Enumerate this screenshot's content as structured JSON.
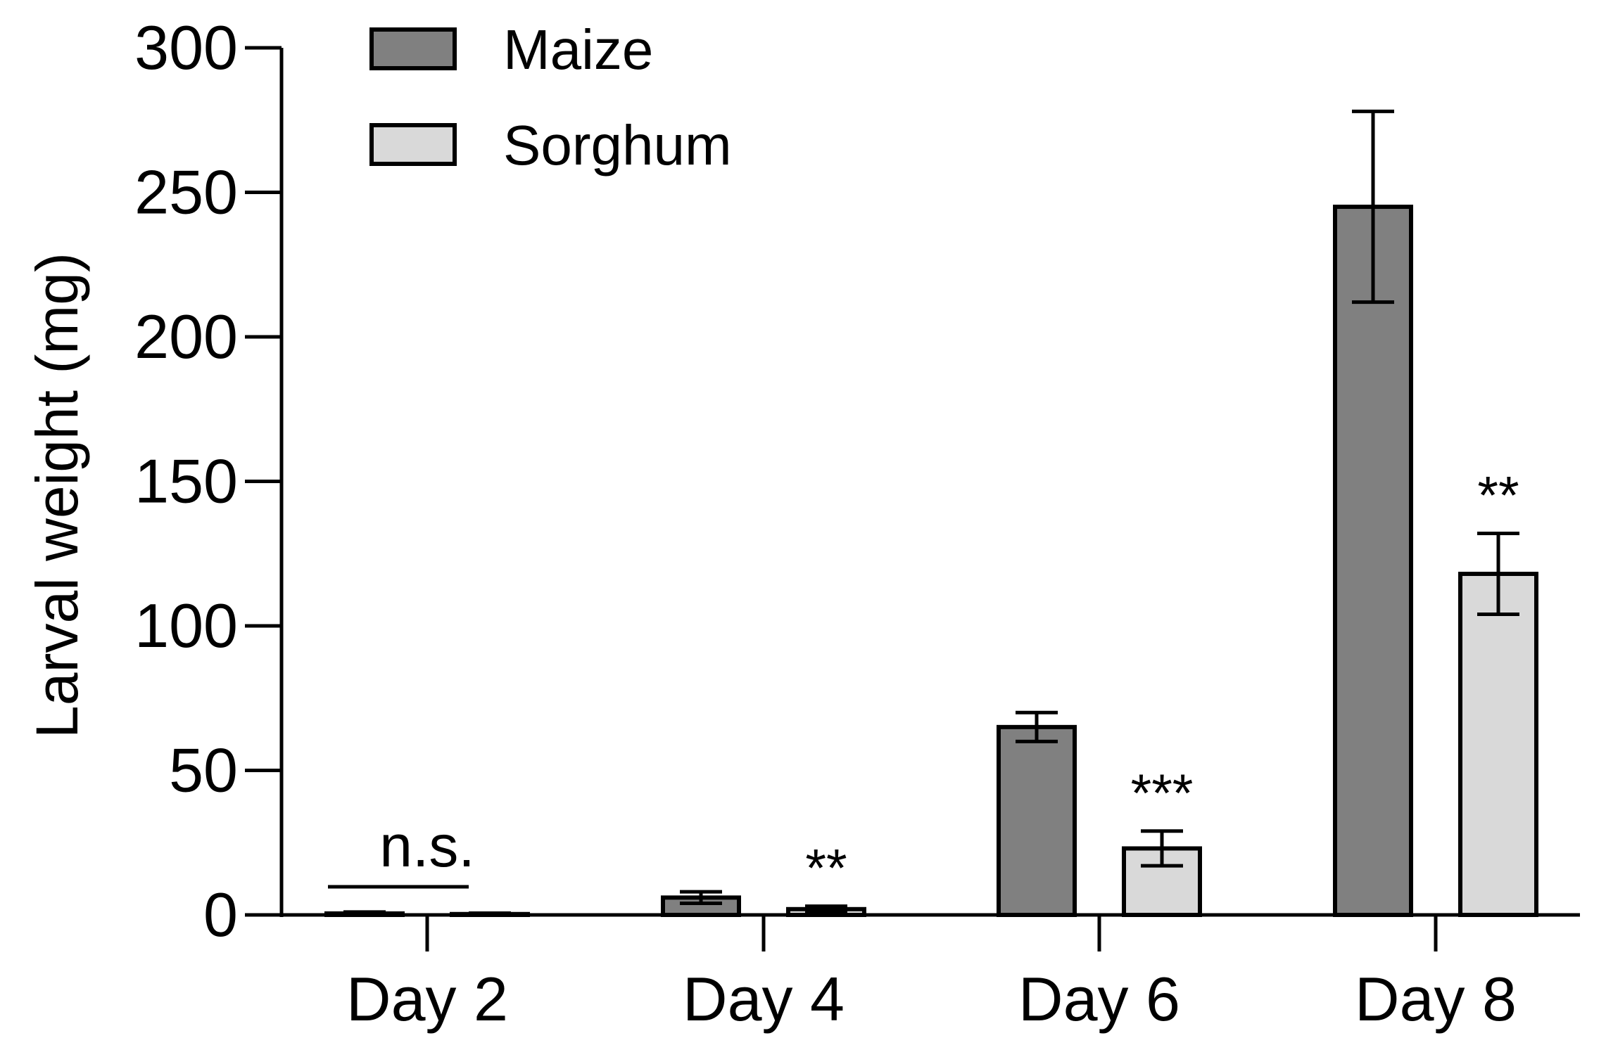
{
  "chart_data": {
    "type": "bar",
    "title": "",
    "xlabel": "",
    "ylabel": "Larval weight (mg)",
    "ylim": [
      0,
      300
    ],
    "yticks": [
      0,
      50,
      100,
      150,
      200,
      250,
      300
    ],
    "categories": [
      "Day 2",
      "Day 4",
      "Day 6",
      "Day 8"
    ],
    "series": [
      {
        "name": "Maize",
        "color": "#808080",
        "values": [
          0.5,
          6,
          65,
          245
        ],
        "error": [
          0.5,
          2,
          5,
          33
        ]
      },
      {
        "name": "Sorghum",
        "color": "#d9d9d9",
        "values": [
          0.3,
          2,
          23,
          118
        ],
        "error": [
          0.3,
          1,
          6,
          14
        ]
      }
    ],
    "annotations": [
      {
        "category": "Day 2",
        "label": "n.s.",
        "type": "bracket"
      },
      {
        "category": "Day 4",
        "label": "**",
        "type": "star"
      },
      {
        "category": "Day 6",
        "label": "***",
        "type": "star"
      },
      {
        "category": "Day 8",
        "label": "**",
        "type": "star"
      }
    ],
    "legend": {
      "position": "top-left",
      "entries": [
        "Maize",
        "Sorghum"
      ]
    },
    "grid": false
  }
}
